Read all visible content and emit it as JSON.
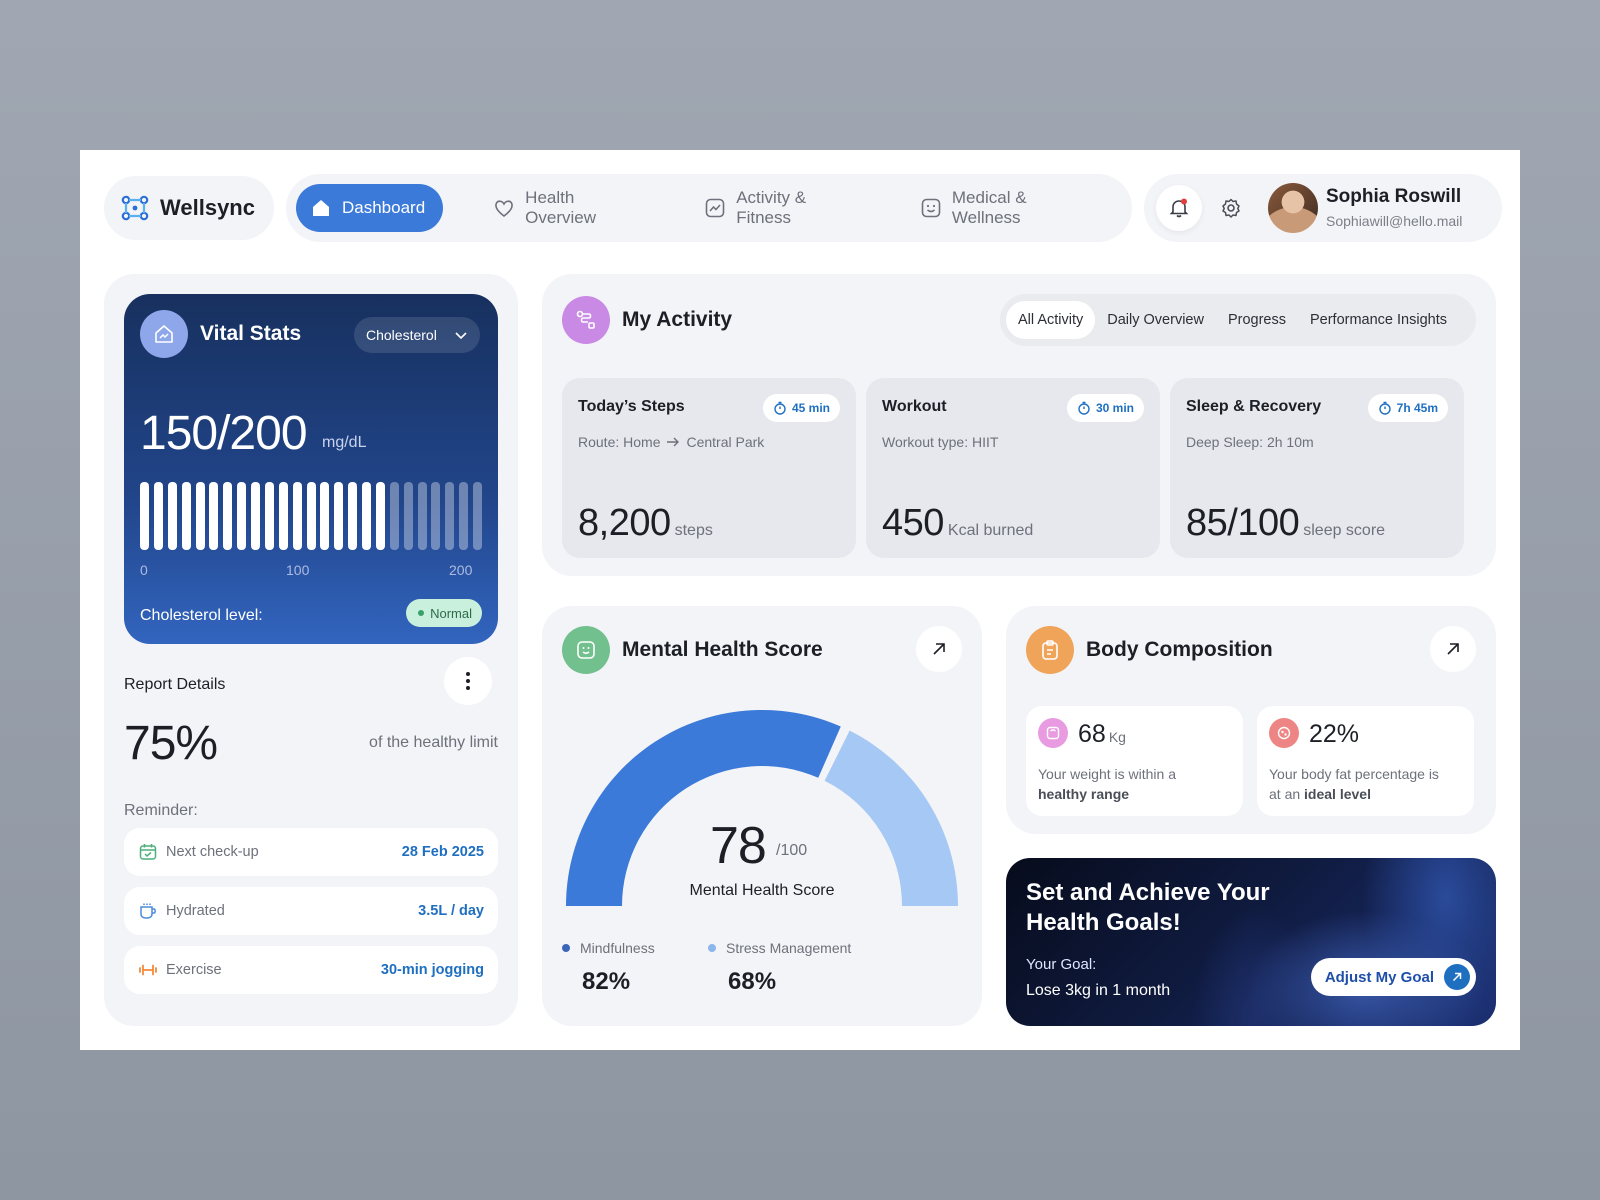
{
  "brand": {
    "name": "Wellsync"
  },
  "nav": {
    "items": [
      {
        "label": "Dashboard"
      },
      {
        "label": "Health Overview"
      },
      {
        "label": "Activity & Fitness"
      },
      {
        "label": "Medical & Wellness"
      }
    ]
  },
  "user": {
    "name": "Sophia Roswill",
    "email": "Sophiawill@hello.mail"
  },
  "vital": {
    "title": "Vital Stats",
    "select": "Cholesterol",
    "value": "150/200",
    "unit": "mg/dL",
    "level_value": 150,
    "level_max": 200,
    "tick_min": "0",
    "tick_mid": "100",
    "tick_max": "200",
    "level_label": "Cholesterol level:",
    "badge": "Normal"
  },
  "report": {
    "title": "Report Details",
    "percent": "75%",
    "desc": "of the healthy limit",
    "reminder_title": "Reminder:",
    "reminders": [
      {
        "label": "Next check-up",
        "value": "28 Feb 2025",
        "icon": "calendar-icon"
      },
      {
        "label": "Hydrated",
        "value": "3.5L / day",
        "icon": "cup-icon"
      },
      {
        "label": "Exercise",
        "value": "30-min jogging",
        "icon": "dumbbell-icon"
      }
    ]
  },
  "activity": {
    "title": "My Activity",
    "tabs": [
      "All Activity",
      "Daily Overview",
      "Progress",
      "Performance Insights"
    ],
    "cards": [
      {
        "title": "Today’s Steps",
        "badge": "45 min",
        "sub_a": "Route: Home",
        "sub_b": "Central Park",
        "value": "8,200",
        "unit": "steps"
      },
      {
        "title": "Workout",
        "badge": "30 min",
        "sub": "Workout type: HIIT",
        "value": "450",
        "unit": "Kcal burned"
      },
      {
        "title": "Sleep & Recovery",
        "badge": "7h 45m",
        "sub": "Deep Sleep: 2h 10m",
        "value": "85/100",
        "unit": "sleep score"
      }
    ]
  },
  "mental": {
    "title": "Mental Health Score",
    "score": "78",
    "max": "/100",
    "label": "Mental Health Score",
    "score_value": 78,
    "score_max": 100,
    "legend": [
      {
        "name": "Mindfulness",
        "value": "82%",
        "color": "#3b7ad9"
      },
      {
        "name": "Stress Management",
        "value": "68%",
        "color": "#9dc3f2"
      }
    ]
  },
  "body": {
    "title": "Body Composition",
    "weight": {
      "value": "68",
      "unit": "Kg",
      "desc_a": "Your weight is within a",
      "desc_b": "healthy range"
    },
    "fat": {
      "value": "22%",
      "desc_a": "Your body fat percentage is",
      "desc_b_pre": "at an",
      "desc_b_bold": "ideal level"
    }
  },
  "goal": {
    "title": "Set and Achieve Your Health Goals!",
    "label": "Your Goal:",
    "value": "Lose 3kg in 1 month",
    "button": "Adjust My Goal"
  },
  "colors": {
    "accent": "#3b7ad9",
    "link": "#1f6fc1",
    "navy": "#1c3a78",
    "card_bg": "#f3f4f7"
  }
}
